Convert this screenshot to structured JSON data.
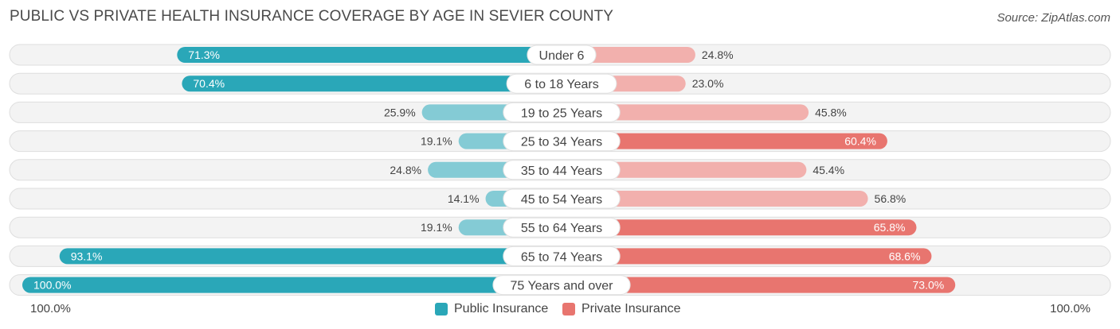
{
  "title": "PUBLIC VS PRIVATE HEALTH INSURANCE COVERAGE BY AGE IN SEVIER COUNTY",
  "source": "Source: ZipAtlas.com",
  "colors": {
    "public_dark": "#2aa7b8",
    "public_light": "#84cbd5",
    "private_dark": "#e8756f",
    "private_light": "#f2b0ad",
    "track": "#efefef"
  },
  "axis": {
    "left_label": "100.0%",
    "right_label": "100.0%"
  },
  "legend": {
    "public": "Public Insurance",
    "private": "Private Insurance"
  },
  "chart_data": {
    "type": "bar",
    "orientation": "diverging-horizontal",
    "title": "PUBLIC VS PRIVATE HEALTH INSURANCE COVERAGE BY AGE IN SEVIER COUNTY",
    "xlim": [
      0,
      100
    ],
    "categories": [
      "Under 6",
      "6 to 18 Years",
      "19 to 25 Years",
      "25 to 34 Years",
      "35 to 44 Years",
      "45 to 54 Years",
      "55 to 64 Years",
      "65 to 74 Years",
      "75 Years and over"
    ],
    "series": [
      {
        "name": "Public Insurance",
        "values": [
          71.3,
          70.4,
          25.9,
          19.1,
          24.8,
          14.1,
          19.1,
          93.1,
          100.0
        ],
        "labels": [
          "71.3%",
          "70.4%",
          "25.9%",
          "19.1%",
          "24.8%",
          "14.1%",
          "19.1%",
          "93.1%",
          "100.0%"
        ]
      },
      {
        "name": "Private Insurance",
        "values": [
          24.8,
          23.0,
          45.8,
          60.4,
          45.4,
          56.8,
          65.8,
          68.6,
          73.0
        ],
        "labels": [
          "24.8%",
          "23.0%",
          "45.8%",
          "60.4%",
          "45.4%",
          "56.8%",
          "65.8%",
          "68.6%",
          "73.0%"
        ]
      }
    ]
  }
}
